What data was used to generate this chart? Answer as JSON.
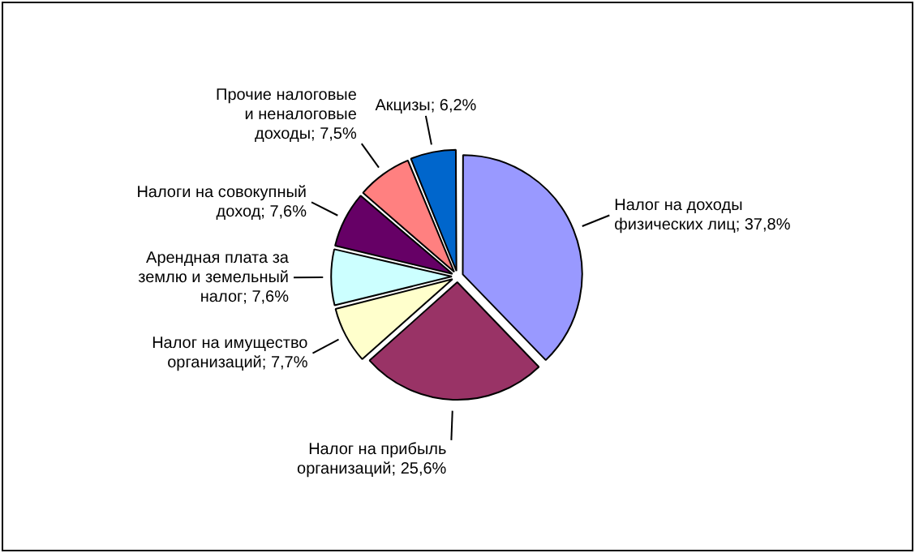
{
  "chart_data": {
    "type": "pie",
    "categories": [
      "Налог на доходы физических лиц",
      "Налог на прибыль организаций",
      "Налог на имущество организаций",
      "Арендная плата за землю и земельный налог",
      "Налоги на совокупный доход",
      "Прочие налоговые и неналоговые доходы",
      "Акцизы"
    ],
    "values": [
      37.8,
      25.6,
      7.7,
      7.6,
      7.6,
      7.5,
      6.2
    ],
    "colors": [
      "#9999ff",
      "#993366",
      "#ffffcc",
      "#ccffff",
      "#660066",
      "#ff8080",
      "#0066cc"
    ],
    "value_labels": [
      "37,8%",
      "25,6%",
      "7,7%",
      "7,6%",
      "7,6%",
      "7,5%",
      "6,2%"
    ],
    "legend": false
  }
}
